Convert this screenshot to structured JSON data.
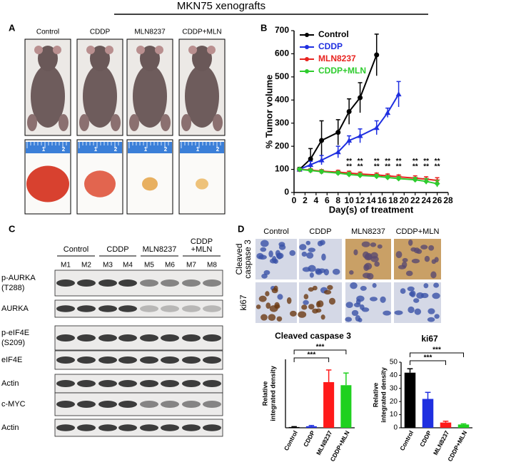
{
  "title": "MKN75 xenografts",
  "panel_a": {
    "label": "A",
    "groups": [
      "Control",
      "CDDP",
      "MLN8237",
      "CDDP+MLN"
    ],
    "ruler_labels": [
      "1",
      "2"
    ]
  },
  "panel_c": {
    "label": "C",
    "groups": [
      {
        "name": [
          "Control"
        ],
        "lanes": [
          "M1",
          "M2"
        ]
      },
      {
        "name": [
          "CDDP"
        ],
        "lanes": [
          "M3",
          "M4"
        ]
      },
      {
        "name": [
          "MLN8237"
        ],
        "lanes": [
          "M5",
          "M6"
        ]
      },
      {
        "name": [
          "CDDP",
          "+MLN"
        ],
        "lanes": [
          "M7",
          "M8"
        ]
      }
    ],
    "rows": [
      [
        "p-AURKA",
        "(T288)"
      ],
      [
        "AURKA"
      ],
      [
        "p-eIF4E",
        "(S209)"
      ],
      [
        "eIF4E"
      ],
      [
        "Actin"
      ],
      [
        "c-MYC"
      ],
      [
        "Actin"
      ]
    ]
  },
  "panel_d": {
    "label": "D",
    "columns": [
      "Control",
      "CDDP",
      "MLN8237",
      "CDDP+MLN"
    ],
    "rows": [
      [
        "Cleaved",
        "caspase 3"
      ],
      [
        "ki67"
      ]
    ]
  },
  "chart_data": [
    {
      "type": "line",
      "panel_label": "B",
      "x_label": "Day(s) of treatment",
      "y_label": "% Tumor volume",
      "xlim": [
        0,
        28
      ],
      "xticks": [
        0,
        2,
        4,
        6,
        8,
        10,
        12,
        14,
        16,
        18,
        20,
        22,
        24,
        26,
        28
      ],
      "ylim": [
        0,
        700
      ],
      "yticks": [
        0,
        100,
        200,
        300,
        400,
        500,
        600,
        700
      ],
      "legend": "top-left",
      "series": [
        {
          "name": "Control",
          "color": "#000000",
          "marker": "circle",
          "x": [
            1,
            3,
            5,
            8,
            10,
            12,
            15
          ],
          "values": [
            100,
            145,
            225,
            260,
            350,
            410,
            595
          ],
          "errors": [
            8,
            45,
            85,
            55,
            55,
            65,
            90
          ]
        },
        {
          "name": "CDDP",
          "color": "#1f2fe0",
          "marker": "triangle",
          "x": [
            1,
            3,
            5,
            8,
            10,
            12,
            15,
            17,
            19
          ],
          "values": [
            100,
            120,
            140,
            175,
            225,
            245,
            280,
            345,
            425
          ],
          "errors": [
            5,
            15,
            20,
            25,
            20,
            30,
            30,
            20,
            55
          ]
        },
        {
          "name": "MLN8237",
          "color": "#e8231f",
          "marker": "star",
          "x": [
            1,
            3,
            5,
            8,
            10,
            12,
            15,
            17,
            19,
            22,
            24,
            26
          ],
          "values": [
            100,
            97,
            92,
            88,
            84,
            80,
            76,
            72,
            68,
            62,
            58,
            52
          ],
          "errors": [
            5,
            6,
            7,
            8,
            8,
            8,
            8,
            8,
            8,
            10,
            10,
            12
          ]
        },
        {
          "name": "CDDP+MLN",
          "color": "#2ecc2e",
          "marker": "diamond",
          "x": [
            1,
            3,
            5,
            8,
            10,
            12,
            15,
            17,
            19,
            22,
            24,
            26
          ],
          "values": [
            100,
            95,
            90,
            84,
            78,
            74,
            70,
            65,
            60,
            55,
            48,
            38
          ],
          "errors": [
            5,
            6,
            7,
            8,
            8,
            8,
            8,
            8,
            8,
            10,
            12,
            14
          ]
        }
      ],
      "annotation": "**",
      "annotation_x": [
        10,
        12,
        15,
        17,
        19,
        22,
        24,
        26
      ],
      "annotation_y": [
        135,
        112
      ]
    },
    {
      "type": "bar",
      "title": "Cleaved caspase 3",
      "y_label": [
        "Relative",
        "integrated density"
      ],
      "categories": [
        "Control",
        "CDDP",
        "MLN8237",
        "CDDP+MLN"
      ],
      "values": [
        1,
        2,
        60,
        56
      ],
      "errors": [
        0.5,
        1,
        16,
        16
      ],
      "colors": [
        "#000000",
        "#1f2fe0",
        "#ff1a1a",
        "#1fd11f"
      ],
      "ylim": [
        0,
        90
      ],
      "significance": [
        {
          "text": "***",
          "from": "Control",
          "to": "MLN8237"
        },
        {
          "text": "***",
          "from": "Control",
          "to": "CDDP+MLN"
        }
      ]
    },
    {
      "type": "bar",
      "title": "ki67",
      "y_label": [
        "Relative",
        "integrated density"
      ],
      "categories": [
        "Control",
        "CDDP",
        "MLN8237",
        "CDDP+MLN"
      ],
      "values": [
        42,
        22,
        4,
        2.5
      ],
      "errors": [
        3,
        5,
        1,
        0.5
      ],
      "colors": [
        "#000000",
        "#1f2fe0",
        "#ff1a1a",
        "#1fd11f"
      ],
      "ylim": [
        0,
        50
      ],
      "yticks": [
        0,
        10,
        20,
        30,
        40,
        50
      ],
      "significance": [
        {
          "text": "***",
          "from": "Control",
          "to": "MLN8237"
        },
        {
          "text": "***",
          "from": "Control",
          "to": "CDDP+MLN"
        }
      ]
    }
  ]
}
